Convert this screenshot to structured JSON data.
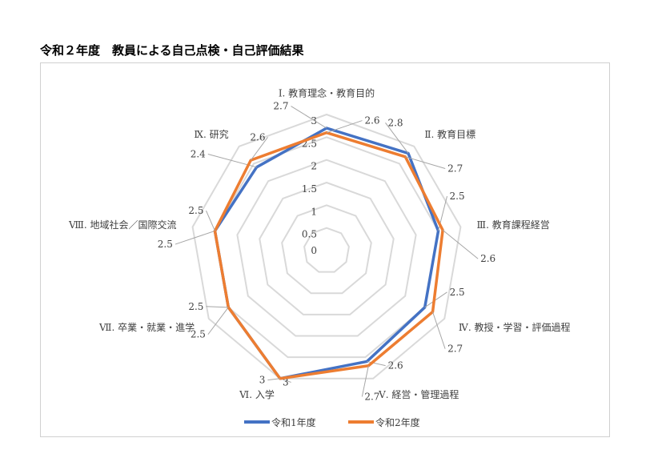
{
  "title": "令和２年度　教員による自己点検・自己評価結果",
  "chart_data": {
    "type": "radar",
    "categories": [
      "Ⅰ. 教育理念・教育目的",
      "Ⅱ. 教育目標",
      "Ⅲ. 教育課程経営",
      "Ⅳ. 教授・学習・評価過程",
      "Ⅴ. 経営・管理過程",
      "Ⅵ. 入学",
      "Ⅶ. 卒業・就業・進学",
      "Ⅷ. 地域社会／国際交流",
      "Ⅸ. 研究"
    ],
    "axis_ticks": [
      "0",
      "0.5",
      "1",
      "1.5",
      "2",
      "2.5",
      "3"
    ],
    "range": [
      0,
      3
    ],
    "series": [
      {
        "name": "令和1年度",
        "color": "#4472C4",
        "values": [
          2.7,
          2.8,
          2.5,
          2.5,
          2.6,
          3,
          2.5,
          2.5,
          2.4
        ]
      },
      {
        "name": "令和2年度",
        "color": "#ED7D31",
        "values": [
          2.6,
          2.7,
          2.6,
          2.7,
          2.7,
          3,
          2.5,
          2.5,
          2.6
        ]
      }
    ],
    "legend": "bottom",
    "grid_color": "#d9d9d9"
  }
}
